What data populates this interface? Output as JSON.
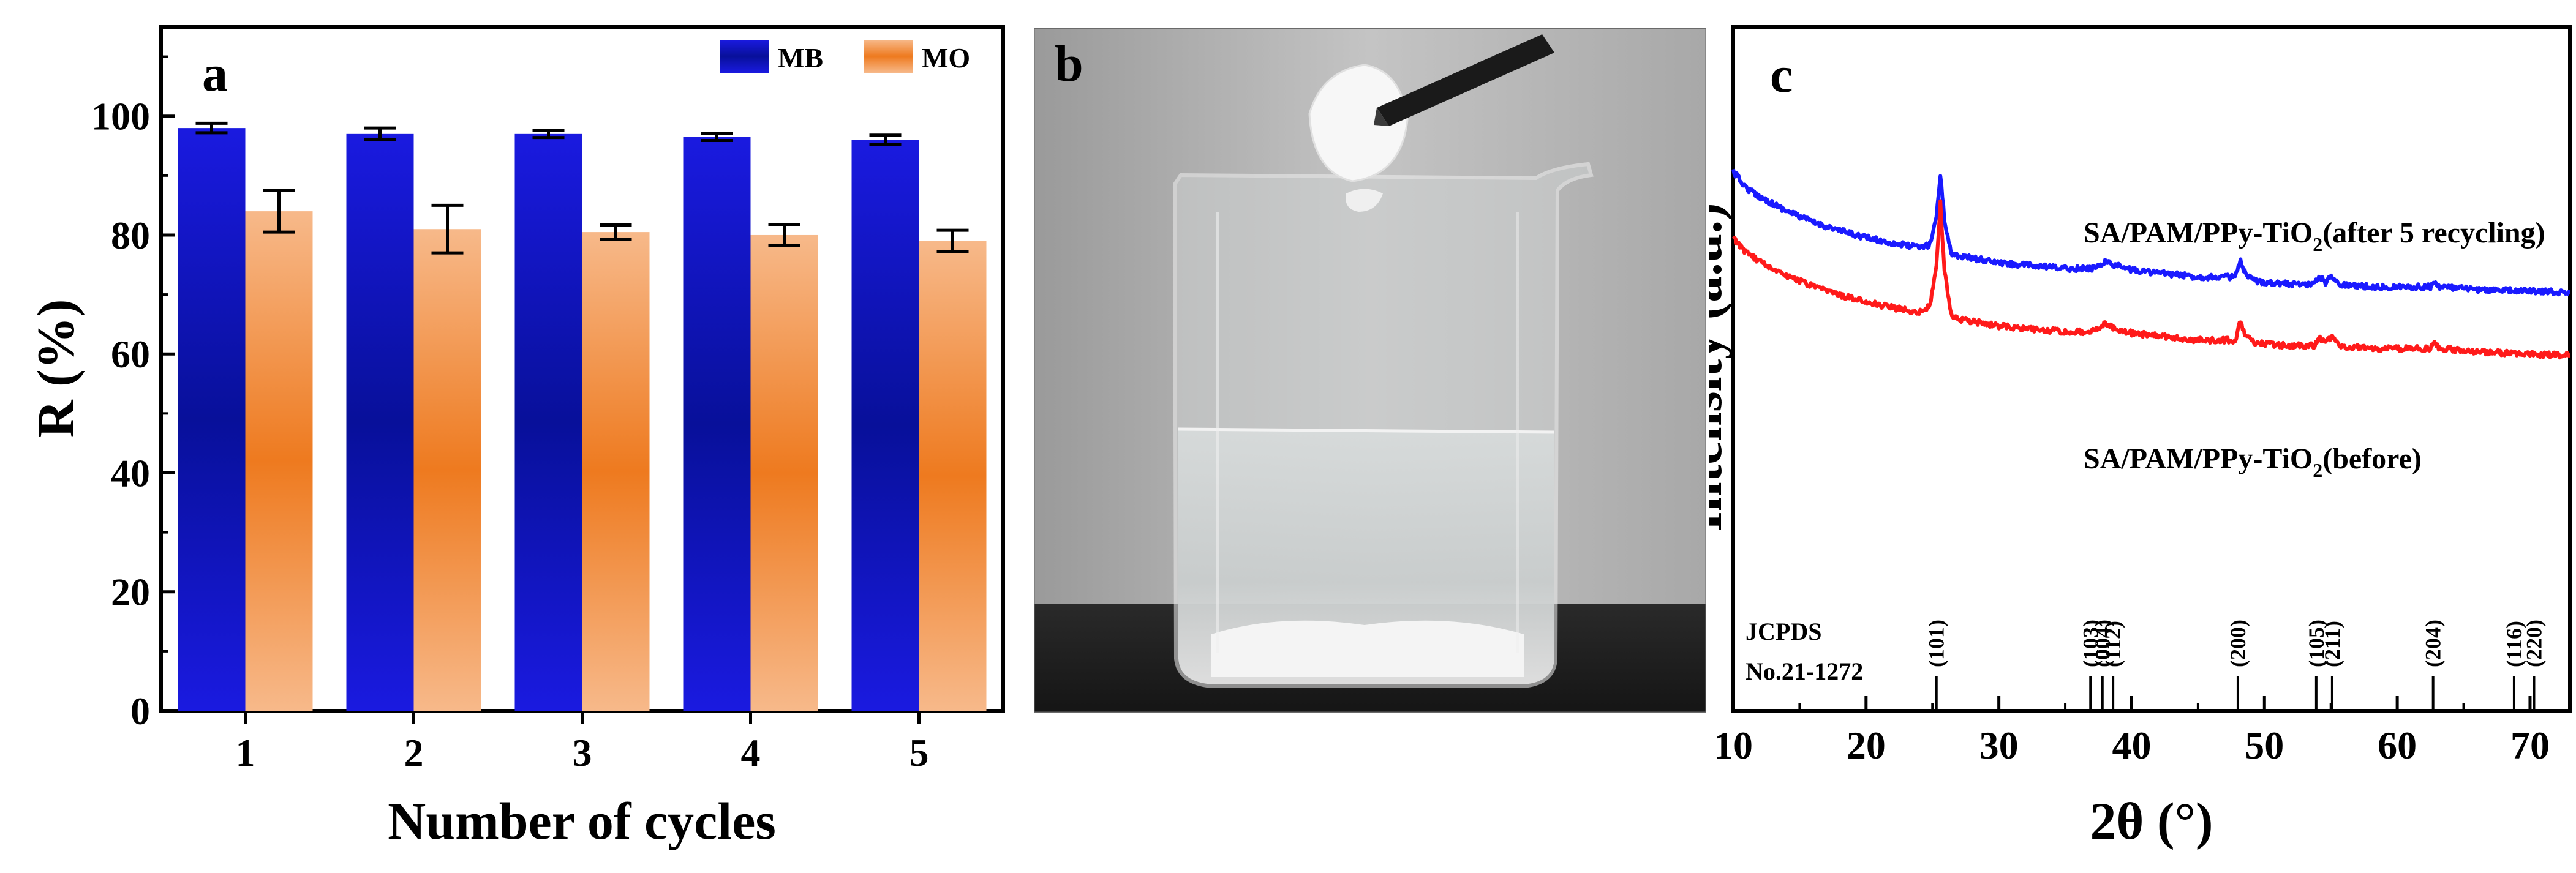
{
  "chart_data": [
    {
      "type": "bar",
      "panel_label": "a",
      "categories": [
        "1",
        "2",
        "3",
        "4",
        "5"
      ],
      "series": [
        {
          "name": "MB",
          "values": [
            98.0,
            97.0,
            97.0,
            96.5,
            96.0
          ],
          "errors": [
            0.8,
            1.0,
            0.6,
            0.6,
            0.8
          ],
          "color": "#0a14c8"
        },
        {
          "name": "MO",
          "values": [
            84.0,
            81.0,
            80.5,
            80.0,
            79.0
          ],
          "errors": [
            3.5,
            4.0,
            1.2,
            1.8,
            1.8
          ],
          "color": "#f08a3a"
        }
      ],
      "xlabel": "Number of cycles",
      "ylabel": "R (%)",
      "ylim": [
        0,
        115
      ],
      "yticks": [
        0,
        20,
        40,
        60,
        80,
        100
      ],
      "legend_position": "top-right"
    },
    {
      "type": "line",
      "panel_label": "c",
      "xlabel": "2θ (°)",
      "ylabel": "Intensity (a.u.)",
      "xlim": [
        10,
        73
      ],
      "xticks": [
        10,
        20,
        30,
        40,
        50,
        60,
        70
      ],
      "series": [
        {
          "name_main": "SA/PAM/PPy-TiO",
          "name_sub": "2",
          "name_tail": "(after 5 recycling)",
          "color": "#1a1aff",
          "x": [
            10.0,
            11.0,
            12.0,
            14.0,
            16.0,
            18.0,
            20.0,
            22.0,
            24.0,
            24.8,
            25.3,
            25.6,
            25.9,
            26.4,
            27.0,
            30.0,
            35.0,
            37.0,
            38.0,
            38.6,
            40.0,
            45.0,
            47.8,
            48.2,
            48.6,
            49.3,
            52.0,
            53.8,
            54.1,
            54.6,
            55.1,
            55.6,
            58.0,
            62.5,
            62.8,
            63.2,
            66.0,
            70.0,
            73.0
          ],
          "y": [
            1.0,
            0.88,
            0.82,
            0.72,
            0.64,
            0.58,
            0.53,
            0.49,
            0.46,
            0.48,
            0.68,
            0.98,
            0.66,
            0.42,
            0.4,
            0.35,
            0.31,
            0.31,
            0.36,
            0.34,
            0.3,
            0.25,
            0.25,
            0.36,
            0.26,
            0.22,
            0.2,
            0.2,
            0.26,
            0.21,
            0.26,
            0.2,
            0.18,
            0.18,
            0.22,
            0.18,
            0.16,
            0.15,
            0.14
          ]
        },
        {
          "name_main": "SA/PAM/PPy-TiO",
          "name_sub": "2",
          "name_tail": "(before)",
          "color": "#ff1a1a",
          "x": [
            10.0,
            11.0,
            12.0,
            14.0,
            16.0,
            18.0,
            20.0,
            22.0,
            24.0,
            24.8,
            25.3,
            25.6,
            25.9,
            26.4,
            27.0,
            30.0,
            35.0,
            37.0,
            38.0,
            38.6,
            40.0,
            45.0,
            47.8,
            48.2,
            48.6,
            49.3,
            52.0,
            53.8,
            54.1,
            54.6,
            55.1,
            55.6,
            58.0,
            62.5,
            62.8,
            63.2,
            66.0,
            70.0,
            73.0
          ],
          "y": [
            1.0,
            0.9,
            0.84,
            0.74,
            0.66,
            0.6,
            0.55,
            0.51,
            0.48,
            0.52,
            0.8,
            1.25,
            0.78,
            0.46,
            0.43,
            0.38,
            0.34,
            0.34,
            0.4,
            0.37,
            0.33,
            0.28,
            0.28,
            0.42,
            0.3,
            0.26,
            0.24,
            0.24,
            0.31,
            0.25,
            0.32,
            0.24,
            0.22,
            0.22,
            0.27,
            0.22,
            0.2,
            0.18,
            0.17
          ]
        }
      ],
      "reference": {
        "line1": "JCPDS",
        "line2": "No.21-1272",
        "peaks": [
          {
            "x": 25.3,
            "label": "(101)"
          },
          {
            "x": 36.9,
            "label": "(103)"
          },
          {
            "x": 37.8,
            "label": "(004)"
          },
          {
            "x": 38.6,
            "label": "(112)"
          },
          {
            "x": 48.0,
            "label": "(200)"
          },
          {
            "x": 53.9,
            "label": "(105)"
          },
          {
            "x": 55.1,
            "label": "(211)"
          },
          {
            "x": 62.7,
            "label": "(204)"
          },
          {
            "x": 68.8,
            "label": "(116)"
          },
          {
            "x": 70.3,
            "label": "(220)"
          }
        ]
      }
    }
  ],
  "photo": {
    "panel_label": "b"
  }
}
